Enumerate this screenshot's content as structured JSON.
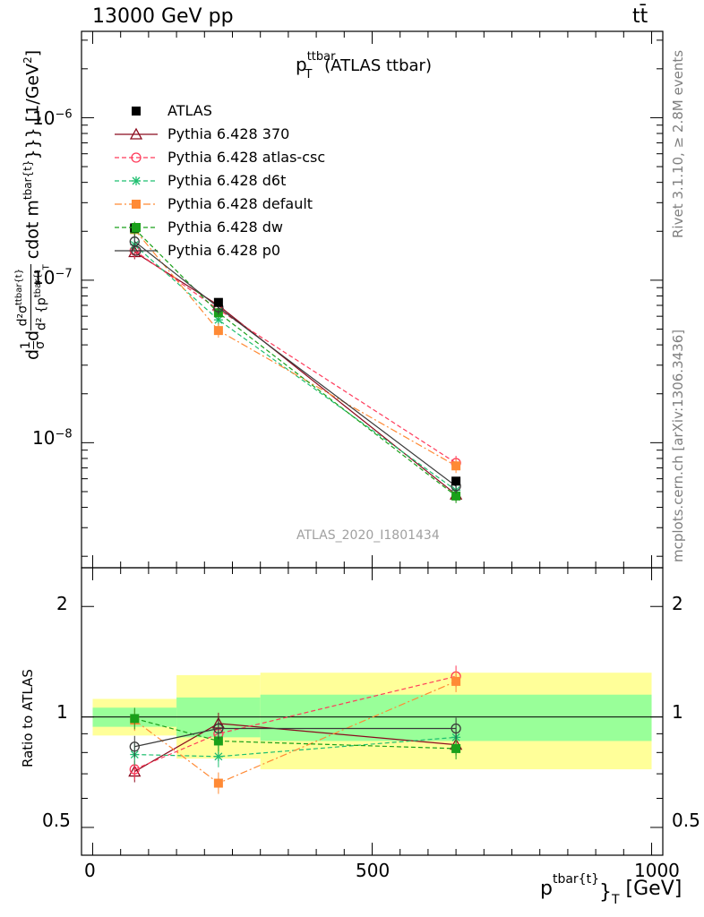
{
  "header": {
    "left": "13000 GeV pp",
    "right": "tt̄"
  },
  "side_labels": {
    "rivet": "Rivet 3.1.10, ≥ 2.8M events",
    "mcplots": "mcplots.cern.ch [arXiv:1306.3436]"
  },
  "main_title": {
    "base": "p",
    "sup": "ttbar",
    "sub": "T",
    "rest": " (ATLAS ttbar)"
  },
  "watermark": "ATLAS_2020_I1801434",
  "y_label_main": "d\\frac{1}{\\sigma}d\\frac{d^2\\sigma^{ttbar{t}}}{d^2{p_T^{tbar{t}}}} cdot m^{tbar{t}}}} [1/GeV^2]",
  "y_label_main_display": {
    "p1": "d",
    "frac1_num": "1",
    "frac1_den": "σ",
    "p2": "d",
    "frac2_num": "d²σ",
    "frac2_num_sup": "ttbar{t}",
    "frac2_den": "d² {p",
    "frac2_den_sup": "tbar{t",
    "frac2_den_sub": "T",
    "p3": "cdot m",
    "p3_sup": "tbar{t}",
    "p4": "}}} [1/GeV",
    "p4_sup": "2",
    "p5": "]"
  },
  "y_label_ratio": "Ratio to ATLAS",
  "x_label": {
    "base": "p",
    "sup": "tbar{t}",
    "mid": "}",
    "sub": "T",
    "rest": " [GeV]"
  },
  "x_ticks": [
    "0",
    "500",
    "1000"
  ],
  "y_ticks_main": [
    {
      "base": "10",
      "exp": "−6"
    },
    {
      "base": "10",
      "exp": "−7"
    },
    {
      "base": "10",
      "exp": "−8"
    }
  ],
  "y_ticks_ratio": [
    "0.5",
    "1",
    "2"
  ],
  "colors": {
    "ATLAS": "#000000",
    "370": "#8b0a1e",
    "atlas-csc": "#ff3a5a",
    "d6t": "#1fbf70",
    "default": "#ff8a35",
    "dw": "#1aa01a",
    "p0": "#3a3a3a",
    "band_inner": "#99ff99",
    "band_outer": "#ffff99"
  },
  "chart_data": {
    "type": "scatter",
    "x_axis": {
      "range": [
        -20,
        1020
      ],
      "ticks": [
        0,
        500,
        1000
      ]
    },
    "main_panel": {
      "scale": "log",
      "yrange": [
        1.7e-09,
        3.4e-06
      ]
    },
    "ratio_panel": {
      "scale": "log",
      "yrange": [
        0.42,
        2.55
      ],
      "reference": 1
    },
    "x": [
      75,
      225,
      650
    ],
    "bins": [
      [
        0,
        150
      ],
      [
        150,
        300
      ],
      [
        300,
        1000
      ]
    ],
    "series": [
      {
        "name": "ATLAS",
        "key": "ATLAS",
        "style": "data",
        "values": [
          2.1e-07,
          7.3e-08,
          5.8e-09
        ],
        "stat_band": [
          [
            0.94,
            1.06
          ],
          [
            0.88,
            1.13
          ],
          [
            0.86,
            1.15
          ]
        ],
        "total_band": [
          [
            0.89,
            1.12
          ],
          [
            0.77,
            1.3
          ],
          [
            0.72,
            1.32
          ]
        ]
      },
      {
        "name": "Pythia 6.428 370",
        "key": "370",
        "marker": "triangle-open",
        "dash": "solid",
        "values": [
          1.49e-07,
          7e-08,
          4.8e-09
        ],
        "ratio": [
          0.71,
          0.96,
          0.84
        ]
      },
      {
        "name": "Pythia 6.428 atlas-csc",
        "key": "atlas-csc",
        "marker": "circle-open",
        "dash": "dashed",
        "values": [
          1.52e-07,
          6.6e-08,
          7.5e-09
        ],
        "ratio": [
          0.72,
          0.9,
          1.29
        ]
      },
      {
        "name": "Pythia 6.428 d6t",
        "key": "d6t",
        "marker": "star",
        "dash": "dashed",
        "values": [
          1.65e-07,
          5.7e-08,
          5.1e-09
        ],
        "ratio": [
          0.79,
          0.78,
          0.88
        ]
      },
      {
        "name": "Pythia 6.428 default",
        "key": "default",
        "marker": "square-filled",
        "dash": "dashdot",
        "values": [
          2.05e-07,
          4.9e-08,
          7.2e-09
        ],
        "ratio": [
          0.98,
          0.66,
          1.25
        ]
      },
      {
        "name": "Pythia 6.428 dw",
        "key": "dw",
        "marker": "square-filled",
        "dash": "dashed",
        "values": [
          2.07e-07,
          6.3e-08,
          4.7e-09
        ],
        "ratio": [
          0.99,
          0.86,
          0.82
        ]
      },
      {
        "name": "Pythia 6.428 p0",
        "key": "p0",
        "marker": "circle-open",
        "dash": "solid",
        "values": [
          1.73e-07,
          6.8e-08,
          5.4e-09
        ],
        "ratio": [
          0.83,
          0.93,
          0.93
        ]
      }
    ]
  }
}
